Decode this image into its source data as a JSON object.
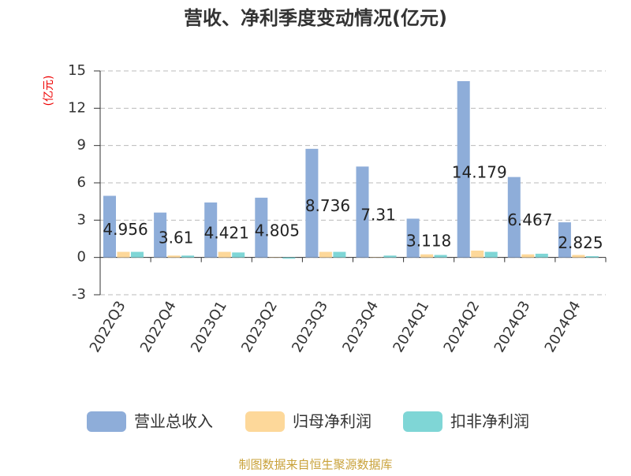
{
  "chart_data": {
    "type": "bar",
    "title": "营收、净利季度变动情况(亿元)",
    "y_label": "(亿元)",
    "categories": [
      "2022Q3",
      "2022Q4",
      "2023Q1",
      "2023Q2",
      "2023Q3",
      "2023Q4",
      "2024Q1",
      "2024Q2",
      "2024Q3",
      "2024Q4"
    ],
    "series": [
      {
        "name": "营业总收入",
        "color": "#8eadd9",
        "values": [
          4.956,
          3.61,
          4.421,
          4.805,
          8.736,
          7.31,
          3.118,
          14.179,
          6.467,
          2.825
        ]
      },
      {
        "name": "归母净利润",
        "color": "#fdd89a",
        "values": [
          0.45,
          0.15,
          0.45,
          0.02,
          0.45,
          0.02,
          0.25,
          0.55,
          0.25,
          0.2
        ]
      },
      {
        "name": "扣非净利润",
        "color": "#7fd6d6",
        "values": [
          0.45,
          0.15,
          0.4,
          -0.1,
          0.45,
          0.15,
          0.2,
          0.45,
          0.3,
          0.1
        ]
      }
    ],
    "ylim": [
      -3,
      15
    ],
    "yticks": [
      -3,
      0,
      3,
      6,
      9,
      12,
      15
    ],
    "grid": true,
    "source": "制图数据来自恒生聚源数据库"
  }
}
